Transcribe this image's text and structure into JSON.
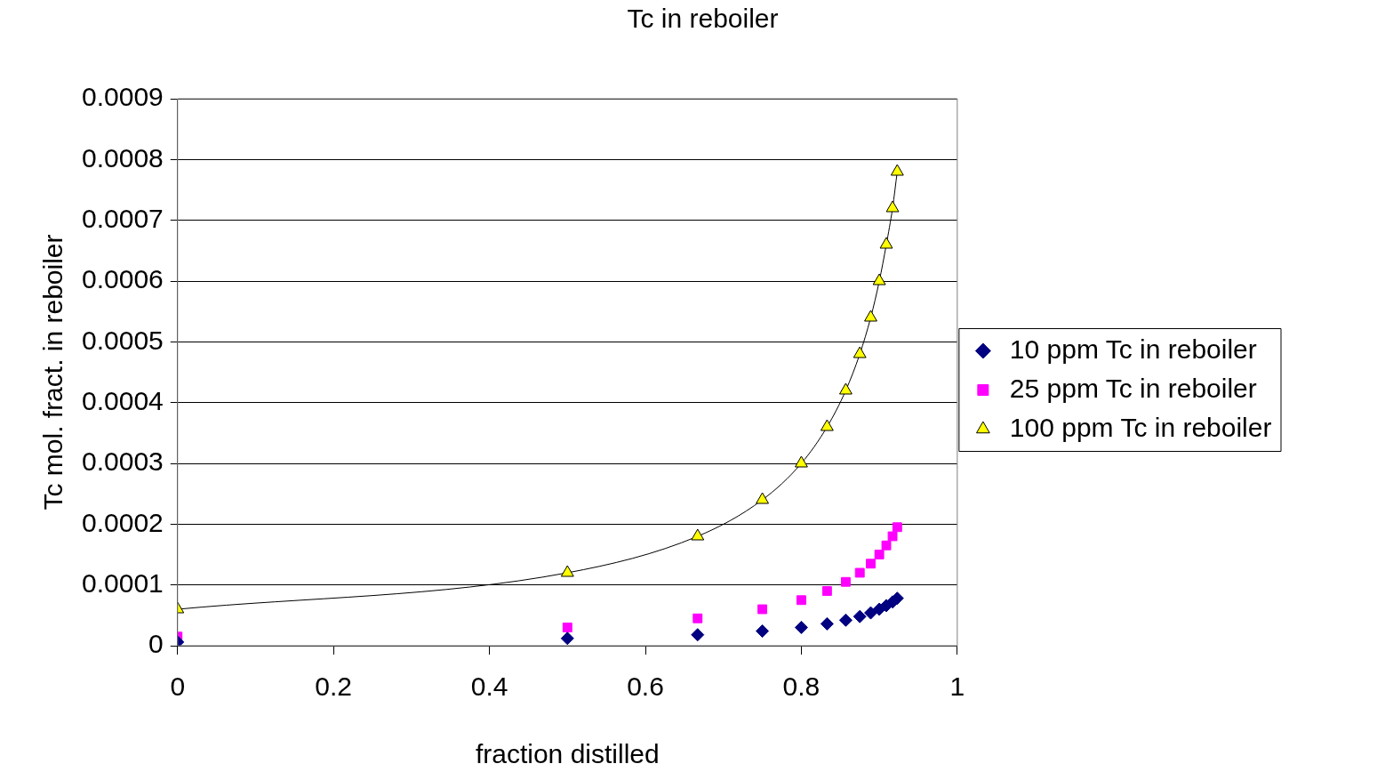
{
  "chart_data": {
    "type": "scatter",
    "title": "Tc in reboiler",
    "xlabel": "fraction distilled",
    "ylabel": "Tc mol. fract. in reboiler",
    "xlim": [
      0,
      1
    ],
    "xticks": [
      0,
      0.2,
      0.4,
      0.6,
      0.8,
      1
    ],
    "ylim": [
      0,
      0.0009
    ],
    "yticks": [
      0,
      0.0001,
      0.0002,
      0.0003,
      0.0004,
      0.0005,
      0.0006,
      0.0007,
      0.0008,
      0.0009
    ],
    "grid": "y",
    "legend": "right",
    "x": [
      0,
      0.5,
      0.667,
      0.75,
      0.8,
      0.833,
      0.857,
      0.875,
      0.889,
      0.9,
      0.909,
      0.917,
      0.923
    ],
    "series": [
      {
        "name": "10 ppm Tc in reboiler",
        "type": "scatter",
        "marker": "diamond",
        "color": "#000080",
        "values": [
          6e-06,
          1.2e-05,
          1.8e-05,
          2.4e-05,
          3e-05,
          3.6e-05,
          4.2e-05,
          4.8e-05,
          5.4e-05,
          6e-05,
          6.6e-05,
          7.2e-05,
          7.8e-05
        ]
      },
      {
        "name": "25 ppm Tc in reboiler",
        "type": "scatter",
        "marker": "square",
        "color": "#ff00ff",
        "values": [
          1.5e-05,
          3e-05,
          4.5e-05,
          6e-05,
          7.5e-05,
          9e-05,
          0.000105,
          0.00012,
          0.000135,
          0.00015,
          0.000165,
          0.00018,
          0.000195
        ]
      },
      {
        "name": "100 ppm Tc in reboiler",
        "type": "line",
        "marker": "triangle",
        "line_style": "solid",
        "color": "#ffff00",
        "values": [
          6e-05,
          0.00012,
          0.00018,
          0.00024,
          0.0003,
          0.00036,
          0.00042,
          0.00048,
          0.00054,
          0.0006,
          0.00066,
          0.00072,
          0.00078
        ]
      }
    ]
  }
}
